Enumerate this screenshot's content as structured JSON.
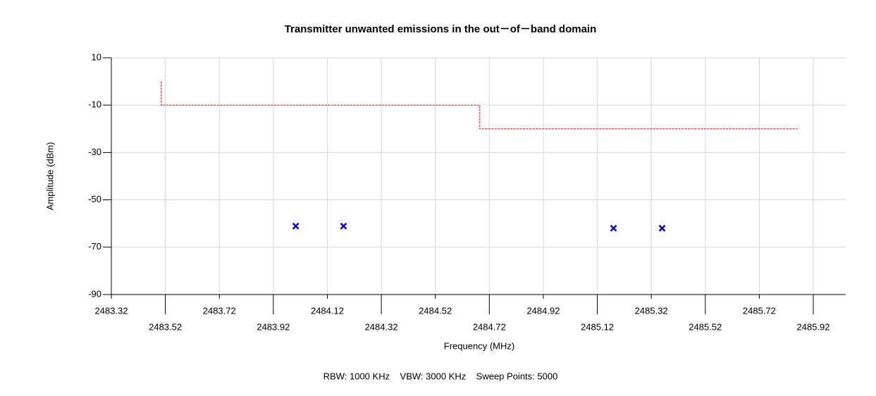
{
  "chart_data": {
    "type": "scatter",
    "title": "Transmitter unwanted emissions in the out－of－band domain",
    "xlabel": "Frequency (MHz)",
    "ylabel": "Amplitude (dBm)",
    "note": "RBW: 1000 KHz    VBW: 3000 KHz    Sweep Points: 5000",
    "xlim": [
      2483.32,
      2486.04
    ],
    "ylim": [
      -90,
      10
    ],
    "xticks": [
      2483.32,
      2483.52,
      2483.72,
      2483.92,
      2484.12,
      2484.32,
      2484.52,
      2484.72,
      2484.92,
      2485.12,
      2485.32,
      2485.52,
      2485.72,
      2485.92
    ],
    "yticks": [
      -90,
      -70,
      -50,
      -30,
      -10,
      10
    ],
    "grid": true,
    "series": [
      {
        "type": "line",
        "color": "#ff4d4d",
        "dashed": true,
        "x": [
          2483.505,
          2483.505,
          2484.684,
          2484.684,
          2485.862
        ],
        "values": [
          0,
          -10,
          -10,
          -20,
          -20
        ]
      },
      {
        "type": "scatter",
        "color": "#0000ff",
        "marker": "x",
        "x": [
          2484.003,
          2484.18,
          2485.18,
          2485.36
        ],
        "values": [
          -61.1,
          -61.1,
          -62,
          -62
        ]
      }
    ]
  }
}
